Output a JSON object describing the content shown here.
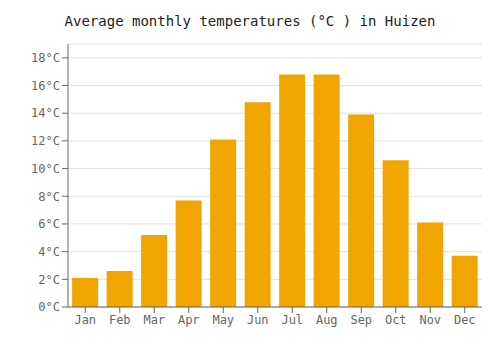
{
  "chart_data": {
    "type": "bar",
    "title": "Average monthly temperatures (°C ) in Huizen",
    "categories": [
      "Jan",
      "Feb",
      "Mar",
      "Apr",
      "May",
      "Jun",
      "Jul",
      "Aug",
      "Sep",
      "Oct",
      "Nov",
      "Dec"
    ],
    "values": [
      2.1,
      2.6,
      5.2,
      7.7,
      12.1,
      14.8,
      16.8,
      16.8,
      13.9,
      10.6,
      6.1,
      3.7
    ],
    "color": "#F0A500",
    "ylim": [
      0,
      19
    ],
    "yticks": [
      {
        "value": 0,
        "label": "0°C"
      },
      {
        "value": 2,
        "label": "2°C"
      },
      {
        "value": 4,
        "label": "4°C"
      },
      {
        "value": 6,
        "label": "6°C"
      },
      {
        "value": 8,
        "label": "8°C"
      },
      {
        "value": 10,
        "label": "10°C"
      },
      {
        "value": 12,
        "label": "12°C"
      },
      {
        "value": 14,
        "label": "14°C"
      },
      {
        "value": 16,
        "label": "16°C"
      },
      {
        "value": 18,
        "label": "18°C"
      }
    ],
    "grid": true
  }
}
